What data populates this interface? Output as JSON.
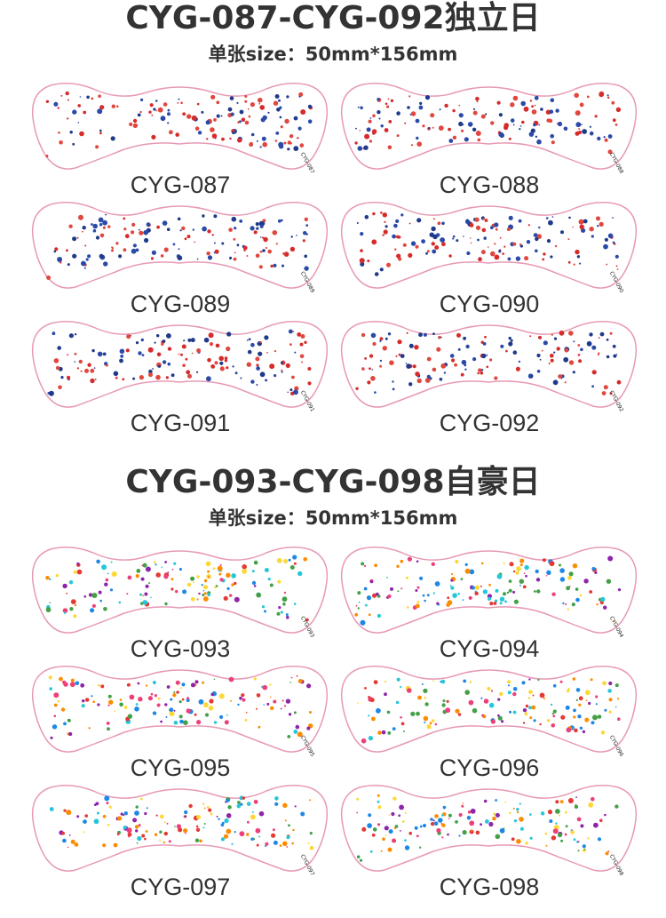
{
  "sections": [
    {
      "title": "CYG-087-CYG-092独立日",
      "subtitle": "单张size：50mm*156mm",
      "items": [
        {
          "label": "CYG-087",
          "code": "CYG-087"
        },
        {
          "label": "CYG-088",
          "code": "CYG-088"
        },
        {
          "label": "CYG-089",
          "code": "CYG-089"
        },
        {
          "label": "CYG-090",
          "code": "CYG-090"
        },
        {
          "label": "CYG-091",
          "code": "CYG-091"
        },
        {
          "label": "CYG-092",
          "code": "CYG-092"
        }
      ]
    },
    {
      "title": "CYG-093-CYG-098自豪日",
      "subtitle": "单张size：50mm*156mm",
      "items": [
        {
          "label": "CYG-093",
          "code": "CYG-093"
        },
        {
          "label": "CYG-094",
          "code": "CYG-094"
        },
        {
          "label": "CYG-095",
          "code": "CYG-095"
        },
        {
          "label": "CYG-096",
          "code": "CYG-096"
        },
        {
          "label": "CYG-097",
          "code": "CYG-097"
        },
        {
          "label": "CYG-098",
          "code": "CYG-098"
        }
      ]
    }
  ]
}
